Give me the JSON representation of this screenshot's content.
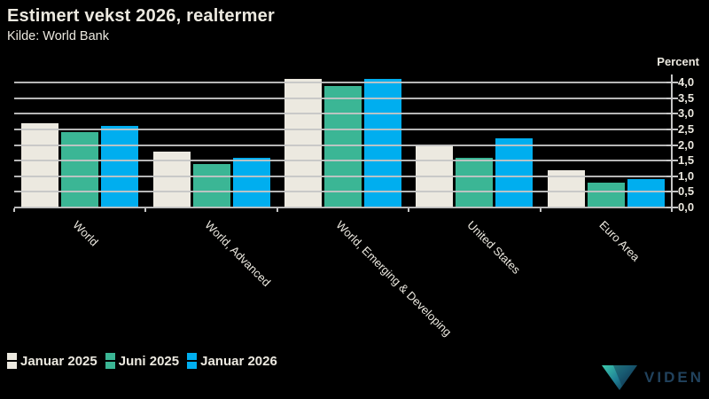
{
  "header": {
    "title": "Estimert vekst 2026, realtermer",
    "subtitle": "Kilde: World Bank"
  },
  "chart_data": {
    "type": "bar",
    "title": "Estimert vekst 2026, realtermer",
    "subtitle": "Kilde: World Bank",
    "categories": [
      "World",
      "World, Advanced",
      "World, Emerging & Developing",
      "United States",
      "Euro Area"
    ],
    "series": [
      {
        "name": "Januar 2025",
        "color": "#ECE9E0",
        "values": [
          2.7,
          1.8,
          4.1,
          2.0,
          1.2
        ]
      },
      {
        "name": "Juni 2025",
        "color": "#3BB695",
        "values": [
          2.4,
          1.4,
          3.9,
          1.6,
          0.8
        ]
      },
      {
        "name": "Januar 2026",
        "color": "#00AEEF",
        "values": [
          2.6,
          1.6,
          4.1,
          2.2,
          0.9
        ]
      }
    ],
    "xlabel": "",
    "ylabel": "Percent",
    "ylim": [
      0.0,
      4.0
    ],
    "ytick_step": 0.5,
    "ytick_labels": [
      "0,0",
      "0,5",
      "1,0",
      "1,5",
      "2,0",
      "2,5",
      "3,0",
      "3,5",
      "4,0"
    ],
    "grid": true,
    "gridlines_over_bars": true,
    "y_axis_side": "right",
    "legend_position": "bottom-left",
    "x_label_rotation_deg": 45
  },
  "axis": {
    "unit_label": "Percent"
  },
  "colors": {
    "background": "#000000",
    "text": "#ECE9E0",
    "grid": "#C5C5C5",
    "logo_text": "#21425D",
    "logo_gradient_start": "#3ECBAD",
    "logo_gradient_end": "#123049"
  },
  "logo": {
    "text": "VIDEN"
  }
}
